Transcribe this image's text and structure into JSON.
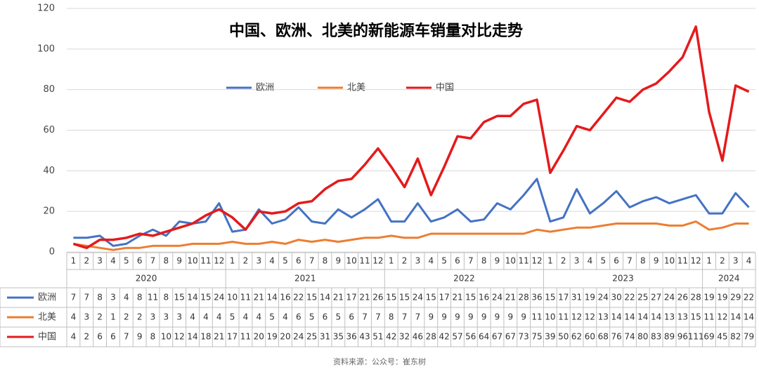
{
  "chart_data": {
    "type": "line",
    "title": "中国、欧洲、北美的新能源车销量对比走势",
    "categories": [
      "1",
      "2",
      "3",
      "4",
      "5",
      "6",
      "7",
      "8",
      "9",
      "10",
      "11",
      "12",
      "1",
      "2",
      "3",
      "4",
      "5",
      "6",
      "7",
      "8",
      "9",
      "10",
      "11",
      "12",
      "1",
      "2",
      "3",
      "4",
      "5",
      "6",
      "7",
      "8",
      "9",
      "10",
      "11",
      "12",
      "1",
      "2",
      "3",
      "4",
      "5",
      "6",
      "7",
      "8",
      "9",
      "10",
      "11",
      "12",
      "1",
      "2",
      "3",
      "4"
    ],
    "years": [
      "2020",
      "2021",
      "2022",
      "2023",
      "2024"
    ],
    "series": [
      {
        "name": "欧洲",
        "color": "#4472c4",
        "values": [
          7,
          7,
          8,
          3,
          4,
          8,
          11,
          8,
          15,
          14,
          15,
          24,
          10,
          11,
          21,
          14,
          16,
          22,
          15,
          14,
          21,
          17,
          21,
          26,
          15,
          15,
          24,
          15,
          17,
          21,
          15,
          16,
          24,
          21,
          28,
          36,
          15,
          17,
          31,
          19,
          24,
          30,
          22,
          25,
          27,
          24,
          26,
          28,
          19,
          19,
          29,
          22
        ]
      },
      {
        "name": "北美",
        "color": "#ed7d31",
        "values": [
          4,
          3,
          2,
          1,
          2,
          2,
          3,
          3,
          3,
          4,
          4,
          4,
          5,
          4,
          4,
          5,
          4,
          6,
          5,
          6,
          5,
          6,
          7,
          7,
          8,
          7,
          7,
          9,
          9,
          9,
          9,
          9,
          9,
          9,
          9,
          11,
          10,
          11,
          12,
          12,
          13,
          14,
          14,
          14,
          14,
          13,
          13,
          15,
          11,
          12,
          14,
          14
        ]
      },
      {
        "name": "中国",
        "color": "#e41a1c",
        "values": [
          4,
          2,
          6,
          6,
          7,
          9,
          8,
          10,
          12,
          14,
          18,
          21,
          17,
          11,
          20,
          19,
          20,
          24,
          25,
          31,
          35,
          36,
          43,
          51,
          42,
          32,
          46,
          28,
          42,
          57,
          56,
          64,
          67,
          67,
          73,
          75,
          39,
          50,
          62,
          60,
          68,
          76,
          74,
          80,
          83,
          89,
          96,
          111,
          69,
          45,
          82,
          79
        ]
      }
    ],
    "ylim": [
      0,
      120
    ],
    "yticks": [
      0,
      20,
      40,
      60,
      80,
      100,
      120
    ],
    "grid": true,
    "legend": "top",
    "source": "资料来源：公众号：崔东树"
  }
}
